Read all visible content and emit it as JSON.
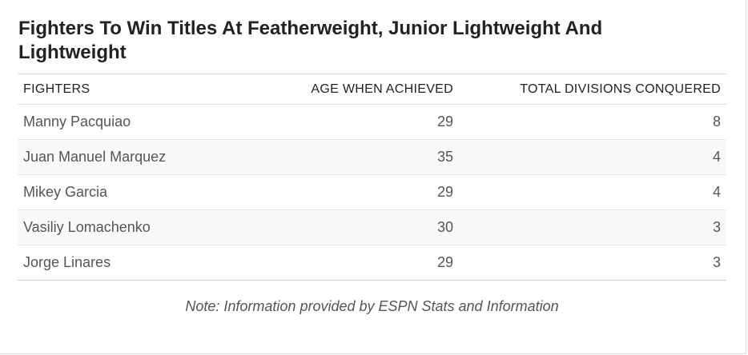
{
  "title": "Fighters To Win Titles At Featherweight, Junior Lightweight And Lightweight",
  "table": {
    "headers": [
      "FIGHTERS",
      "AGE WHEN ACHIEVED",
      "TOTAL DIVISIONS CONQUERED"
    ],
    "rows": [
      {
        "fighter": "Manny Pacquiao",
        "age": "29",
        "divisions": "8"
      },
      {
        "fighter": "Juan Manuel Marquez",
        "age": "35",
        "divisions": "4"
      },
      {
        "fighter": "Mikey Garcia",
        "age": "29",
        "divisions": "4"
      },
      {
        "fighter": "Vasiliy Lomachenko",
        "age": "30",
        "divisions": "3"
      },
      {
        "fighter": "Jorge Linares",
        "age": "29",
        "divisions": "3"
      }
    ]
  },
  "note": "Note: Information provided by ESPN Stats and Information"
}
